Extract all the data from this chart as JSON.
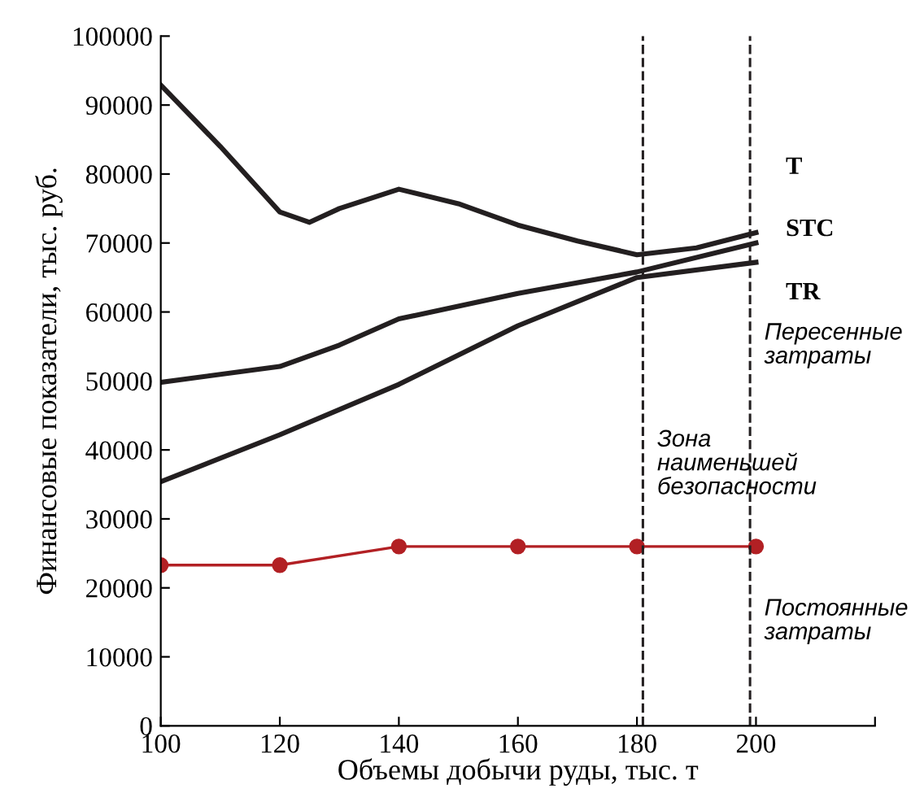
{
  "chart_data": {
    "type": "line",
    "xlabel": "Объемы добычи руды, тыс. т",
    "ylabel": "Финансовые показатели, тыс. руб.",
    "xlim": [
      100,
      220
    ],
    "xticks": [
      100,
      120,
      140,
      160,
      180,
      200,
      {
        "value": 220,
        "label": null
      }
    ],
    "ylim": [
      0,
      100000
    ],
    "yticks": [
      0,
      10000,
      20000,
      30000,
      40000,
      50000,
      60000,
      70000,
      80000,
      90000,
      100000
    ],
    "grid": false,
    "legend": false,
    "series": [
      {
        "name": "T",
        "color": "#231f20",
        "marker": "none",
        "x": [
          100,
          110,
          120,
          125,
          130,
          140,
          150,
          160,
          170,
          180,
          190,
          200
        ],
        "values": [
          92900,
          84000,
          74500,
          73000,
          75000,
          77800,
          75700,
          72600,
          70300,
          68300,
          69300,
          71500
        ]
      },
      {
        "name": "STC",
        "color": "#231f20",
        "marker": "none",
        "x": [
          100,
          120,
          130,
          140,
          160,
          180,
          200
        ],
        "values": [
          49800,
          52100,
          55200,
          59000,
          62700,
          65800,
          70000
        ]
      },
      {
        "name": "TR",
        "color": "#231f20",
        "marker": "none",
        "x": [
          100,
          120,
          140,
          160,
          180,
          200
        ],
        "values": [
          35400,
          42200,
          49500,
          58000,
          65000,
          67200
        ]
      },
      {
        "color": "#b22024",
        "marker": "circle",
        "x": [
          100,
          120,
          140,
          160,
          180,
          200
        ],
        "values": [
          23300,
          23300,
          26000,
          26000,
          26000,
          26000
        ]
      }
    ],
    "ref_lines": [
      {
        "axis": "x",
        "value": 181,
        "line_style": "dashed",
        "color": "#231f20"
      },
      {
        "axis": "x",
        "value": 199,
        "line_style": "dashed",
        "color": "#231f20"
      }
    ],
    "annotations": [
      "Пересенные\nзатраты",
      "Зона\nнаименьшей\nбезопасности",
      "Постоянные\nзатраты"
    ]
  }
}
